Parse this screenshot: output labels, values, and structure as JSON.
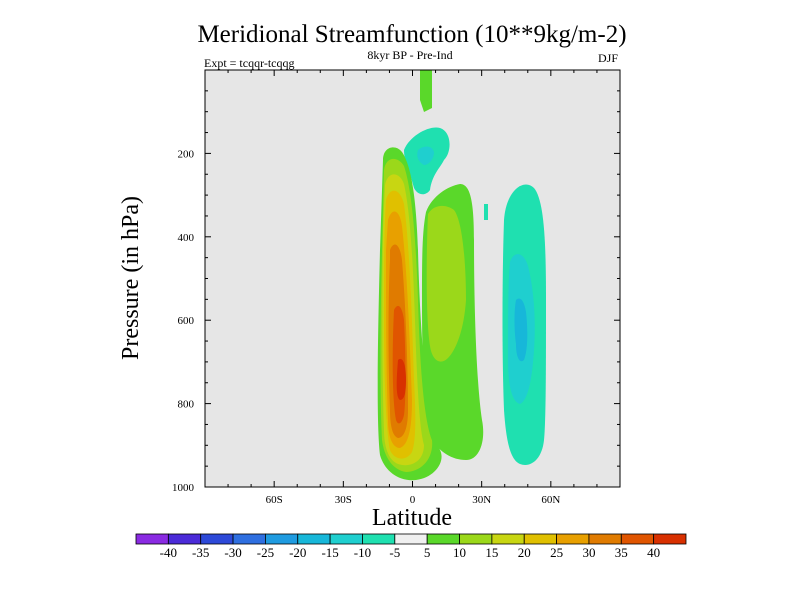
{
  "chart_data": {
    "type": "contour",
    "title": "Meridional Streamfunction (10**9kg/m-2)",
    "subtitle": "8kyr BP - Pre-Ind",
    "experiment": "Expt = tcqqr-tcqqg",
    "season": "DJF",
    "xlabel": "Latitude",
    "ylabel": "Pressure (in hPa)",
    "xlim": [
      -90,
      90
    ],
    "ylim": [
      0,
      1000
    ],
    "y_inverted": true,
    "x_ticks": [
      {
        "value": -60,
        "label": "60S"
      },
      {
        "value": -30,
        "label": "30S"
      },
      {
        "value": 0,
        "label": "0"
      },
      {
        "value": 30,
        "label": "30N"
      },
      {
        "value": 60,
        "label": "60N"
      }
    ],
    "y_ticks": [
      {
        "value": 200,
        "label": "200"
      },
      {
        "value": 400,
        "label": "400"
      },
      {
        "value": 600,
        "label": "600"
      },
      {
        "value": 800,
        "label": "800"
      },
      {
        "value": 1000,
        "label": "1000"
      }
    ],
    "colorbar": {
      "labels": [
        "-40",
        "-35",
        "-30",
        "-25",
        "-20",
        "-15",
        "-10",
        "-5",
        "5",
        "10",
        "15",
        "20",
        "25",
        "30",
        "35",
        "40"
      ],
      "colors": [
        "#8a2be2",
        "#4b2bd8",
        "#2d49d8",
        "#2f6fe0",
        "#1f9be0",
        "#17b7d9",
        "#1fcfcf",
        "#1fe0b0",
        "#f0f0f0",
        "#5ad82a",
        "#9bd81a",
        "#c8d612",
        "#e0c000",
        "#e8a000",
        "#e07b00",
        "#e05500",
        "#d83000"
      ]
    },
    "features": [
      {
        "name": "positive-cell-equator",
        "lat_range": [
          -9,
          10
        ],
        "p_range": [
          185,
          975
        ],
        "peak_value": 40,
        "peak_lat": -1,
        "peak_p": 770
      },
      {
        "name": "positive-cell-north",
        "lat_range": [
          5,
          28
        ],
        "p_range": [
          270,
          965
        ],
        "peak_value": 15
      },
      {
        "name": "negative-cell-north",
        "lat_range": [
          40,
          55
        ],
        "p_range": [
          270,
          950
        ],
        "peak_value": -15
      },
      {
        "name": "negative-cell-upper",
        "lat_range": [
          -5,
          10
        ],
        "p_range": [
          130,
          265
        ],
        "peak_value": -10
      },
      {
        "name": "positive-filament-top",
        "lat_range": [
          3,
          8
        ],
        "p_range": [
          0,
          140
        ],
        "peak_value": 5
      }
    ]
  }
}
